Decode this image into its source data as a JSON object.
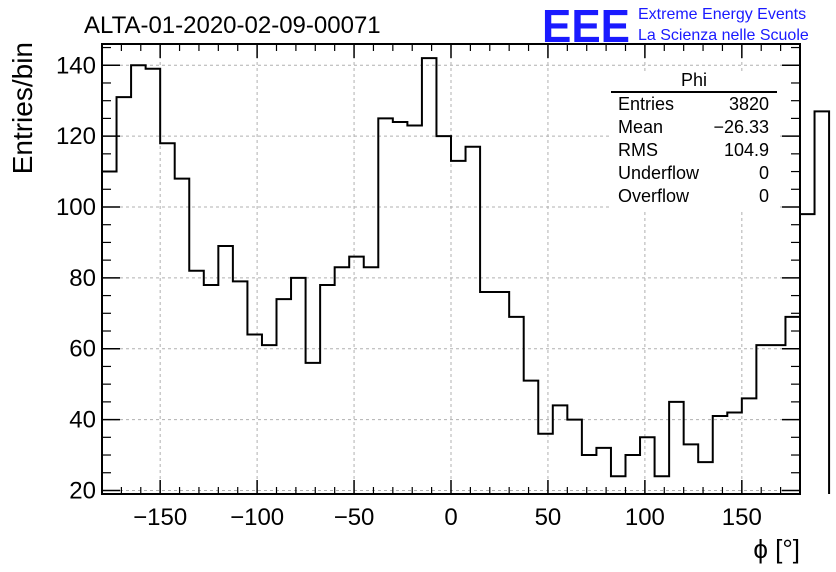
{
  "header": {
    "run_title": "ALTA-01-2020-02-09-00071",
    "logo_mark": "EEE",
    "logo_line1": "Extreme Energy Events",
    "logo_line2": "La Scienza nelle Scuole",
    "logo_color": "#1a1aff"
  },
  "stats_box": {
    "title": "Phi",
    "rows": [
      {
        "label": "Entries",
        "value": "3820"
      },
      {
        "label": "Mean",
        "value": "−26.33"
      },
      {
        "label": "RMS",
        "value": "104.9"
      },
      {
        "label": "Underflow",
        "value": "0"
      },
      {
        "label": "Overflow",
        "value": "0"
      }
    ]
  },
  "chart_data": {
    "type": "histogram",
    "title": "ALTA-01-2020-02-09-00071",
    "xlabel": "ϕ [°]",
    "ylabel": "Entries/bin",
    "xlim": [
      -180,
      180
    ],
    "ylim": [
      19,
      146
    ],
    "x_ticks": [
      -150,
      -100,
      -50,
      0,
      50,
      100,
      150
    ],
    "x_tick_labels": [
      "−150",
      "−100",
      "−50",
      "0",
      "50",
      "100",
      "150"
    ],
    "y_ticks": [
      20,
      40,
      60,
      80,
      100,
      120,
      140
    ],
    "y_tick_labels": [
      "20",
      "40",
      "60",
      "80",
      "100",
      "120",
      "140"
    ],
    "grid": true,
    "bin_width": 7.5,
    "bin_edges_start": -180,
    "values": [
      110,
      131,
      140,
      139,
      118,
      108,
      82,
      78,
      89,
      79,
      64,
      61,
      74,
      80,
      56,
      78,
      83,
      86,
      83,
      125,
      124,
      123,
      142,
      120,
      113,
      117,
      76,
      76,
      69,
      51,
      36,
      44,
      40,
      30,
      32,
      24,
      30,
      35,
      24,
      45,
      33,
      28,
      41,
      42,
      46,
      61,
      61,
      69,
      98,
      127
    ]
  }
}
